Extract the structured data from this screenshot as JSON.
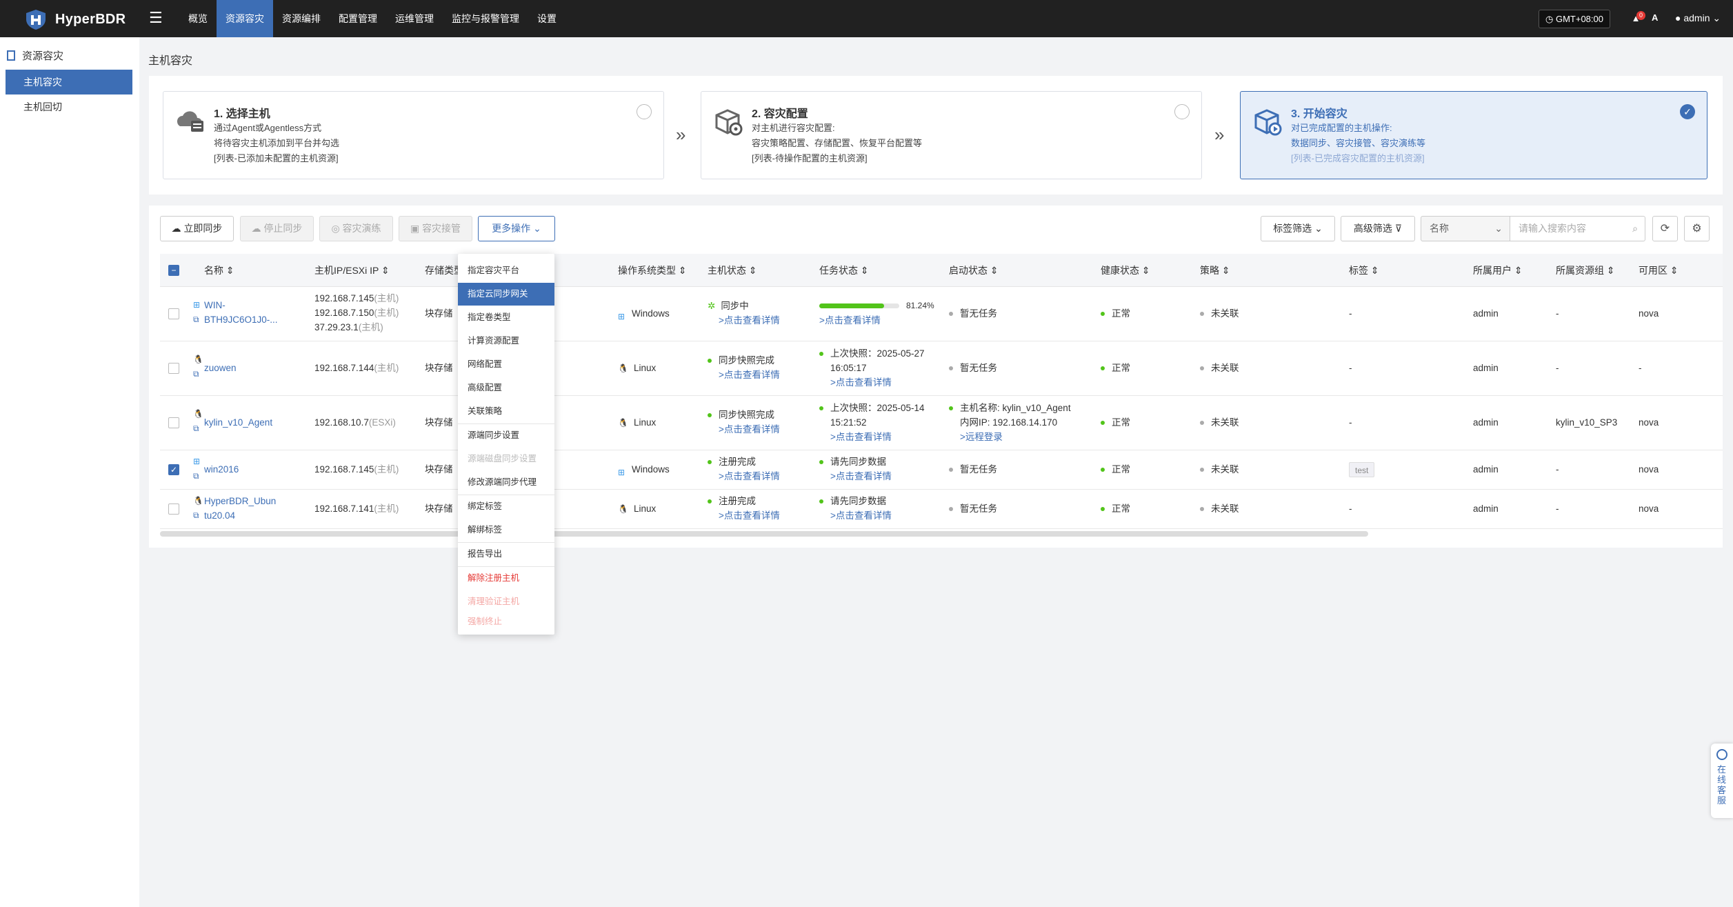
{
  "app": {
    "name": "HyperBDR",
    "timezone": "GMT+08:00",
    "notification_count": "0",
    "user": "admin",
    "lang_icon": "A"
  },
  "nav": [
    "概览",
    "资源容灾",
    "资源编排",
    "配置管理",
    "运维管理",
    "监控与报警管理",
    "设置"
  ],
  "sidebar": {
    "title": "资源容灾",
    "items": [
      "主机容灾",
      "主机回切"
    ]
  },
  "breadcrumb": "主机容灾",
  "steps": [
    {
      "title": "1. 选择主机",
      "lines": [
        "通过Agent或Agentless方式",
        "将待容灾主机添加到平台并勾选",
        "[列表-已添加未配置的主机资源]"
      ]
    },
    {
      "title": "2. 容灾配置",
      "lines": [
        "对主机进行容灾配置:",
        "容灾策略配置、存储配置、恢复平台配置等",
        "[列表-待操作配置的主机资源]"
      ]
    },
    {
      "title": "3. 开始容灾",
      "lines": [
        "对已完成配置的主机操作:",
        "数据同步、容灾接管、容灾演练等",
        "[列表-已完成容灾配置的主机资源]"
      ]
    }
  ],
  "toolbar": {
    "sync_now": "立即同步",
    "stop_sync": "停止同步",
    "drill": "容灾演练",
    "takeover": "容灾接管",
    "more": "更多操作",
    "tag_filter": "标签筛选",
    "adv_filter": "高级筛选",
    "search_field": "名称",
    "search_placeholder": "请输入搜索内容"
  },
  "columns": [
    "名称",
    "主机IP/ESXi IP",
    "存储类型",
    "操作系统类型",
    "主机状态",
    "任务状态",
    "启动状态",
    "健康状态",
    "策略",
    "标签",
    "所属用户",
    "所属资源组",
    "可用区"
  ],
  "rows": [
    {
      "name1": "WIN-",
      "name2": "BTH9JC6O1J0-...",
      "ips": [
        [
          "192.168.7.145",
          "(主机)"
        ],
        [
          "192.168.7.150",
          "(主机)"
        ],
        [
          "37.29.23.1",
          "(主机)"
        ]
      ],
      "storage": "块存储",
      "os": "Windows",
      "host_status": "同步中",
      "host_link": ">点击查看详情",
      "task_progress": "81.24%",
      "task_link": ">点击查看详情",
      "boot": "暂无任务",
      "health": "正常",
      "policy": "未关联",
      "tag": "-",
      "owner": "admin",
      "group": "-",
      "zone": "nova"
    },
    {
      "name1": "zuowen",
      "ips": [
        [
          "192.168.7.144",
          "(主机)"
        ]
      ],
      "storage": "块存储",
      "os": "Linux",
      "host_status": "同步快照完成",
      "host_link": ">点击查看详情",
      "task_l1": "上次快照：2025-05-27",
      "task_l2": "16:05:17",
      "task_link": ">点击查看详情",
      "boot": "暂无任务",
      "health": "正常",
      "policy": "未关联",
      "tag": "-",
      "owner": "admin",
      "group": "-",
      "zone": "-"
    },
    {
      "name1": "kylin_v10_Agent",
      "ips": [
        [
          "192.168.10.7",
          "(ESXi)"
        ]
      ],
      "storage": "块存储",
      "os": "Linux",
      "host_status": "同步快照完成",
      "host_link": ">点击查看详情",
      "task_l1": "上次快照：2025-05-14",
      "task_l2": "15:21:52",
      "task_link": ">点击查看详情",
      "boot_l1": "主机名称: kylin_v10_Agent",
      "boot_l2": "内网IP: 192.168.14.170",
      "boot_link": ">远程登录",
      "health": "正常",
      "policy": "未关联",
      "tag": "-",
      "owner": "admin",
      "group": "kylin_v10_SP3",
      "zone": "nova"
    },
    {
      "name1": "win2016",
      "ips": [
        [
          "192.168.7.145",
          "(主机)"
        ]
      ],
      "storage": "块存储",
      "os": "Windows",
      "host_status": "注册完成",
      "host_link": ">点击查看详情",
      "task_l1": "请先同步数据",
      "task_link": ">点击查看详情",
      "boot": "暂无任务",
      "health": "正常",
      "policy": "未关联",
      "tag": "test",
      "owner": "admin",
      "group": "-",
      "zone": "nova"
    },
    {
      "name1": "HyperBDR_Ubun",
      "name2": "tu20.04",
      "ips": [
        [
          "192.168.7.141",
          "(主机)"
        ]
      ],
      "storage": "块存储",
      "os": "Linux",
      "host_status": "注册完成",
      "host_link": ">点击查看详情",
      "task_l1": "请先同步数据",
      "task_link": ">点击查看详情",
      "boot": "暂无任务",
      "health": "正常",
      "policy": "未关联",
      "tag": "-",
      "owner": "admin",
      "group": "-",
      "zone": "nova"
    }
  ],
  "more_menu": [
    "指定容灾平台",
    "指定云同步网关",
    "指定卷类型",
    "计算资源配置",
    "网络配置",
    "高级配置",
    "关联策略",
    "源端同步设置",
    "源端磁盘同步设置",
    "修改源端同步代理",
    "绑定标签",
    "解绑标签",
    "报告导出",
    "解除注册主机",
    "清理验证主机",
    "强制终止"
  ],
  "support": "在线客服",
  "colors": {
    "accent": "#3d6eb5",
    "topbar": "#212121",
    "success": "#52c41a",
    "danger": "#e53935"
  },
  "progress": {
    "row0": 0.8124
  }
}
